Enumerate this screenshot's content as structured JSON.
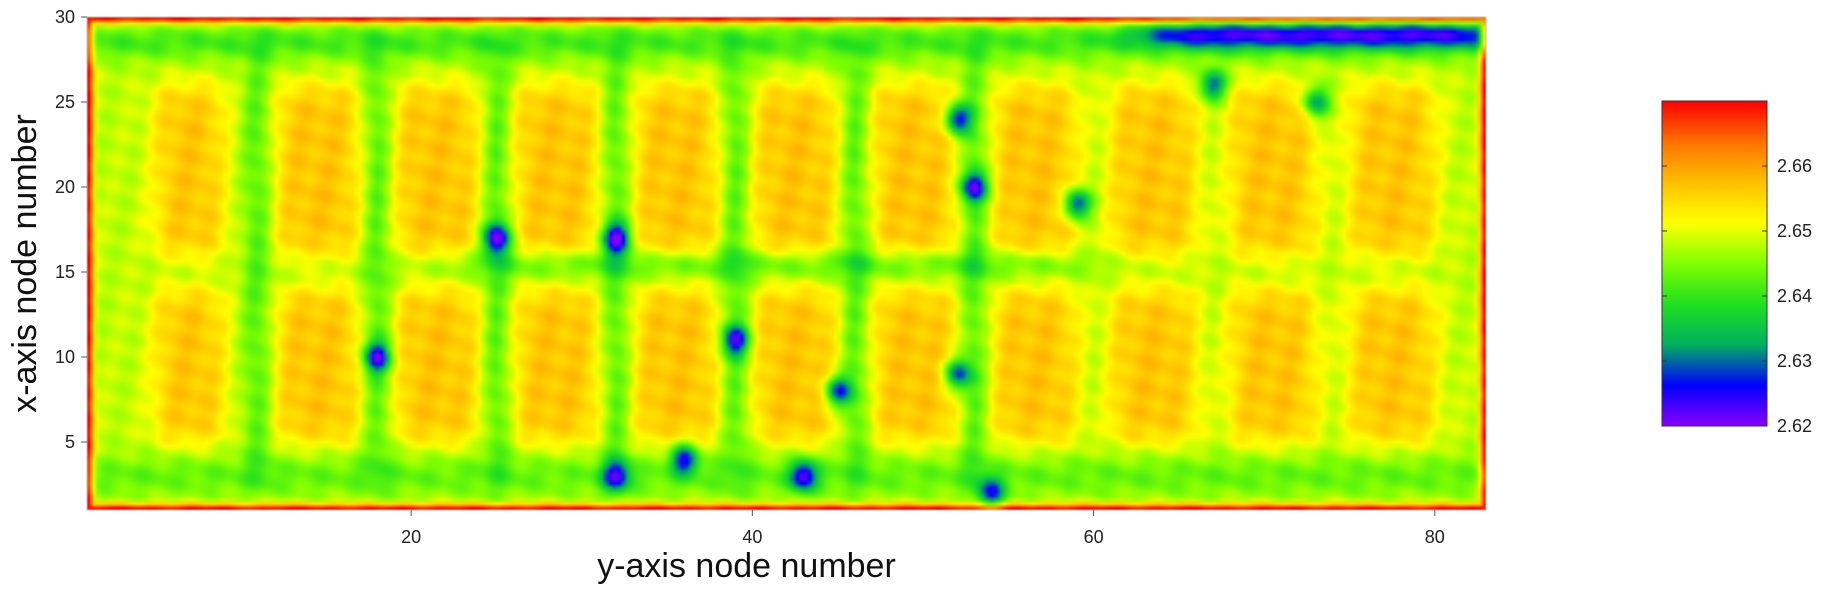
{
  "chart_data": {
    "type": "heatmap",
    "title": "",
    "xlabel": "y-axis node number",
    "ylabel": "x-axis node number",
    "x_range": [
      1,
      83
    ],
    "y_range": [
      1,
      30
    ],
    "x_ticks": [
      20,
      40,
      60,
      80
    ],
    "y_ticks": [
      5,
      10,
      15,
      20,
      25,
      30
    ],
    "grid": false,
    "colorbar": {
      "placement": "right",
      "range": [
        2.62,
        2.67
      ],
      "ticks": [
        2.62,
        2.63,
        2.64,
        2.65,
        2.66
      ],
      "colors": [
        "#8a00ff",
        "#0000ff",
        "#00b060",
        "#20e020",
        "#80ff00",
        "#ffff00",
        "#ffc000",
        "#ff7000",
        "#ff0000"
      ]
    },
    "field_description_values": {
      "border": 2.668,
      "background": 2.648,
      "block_interior": 2.657,
      "cross_band": 2.642,
      "hot_spot_min": 2.628,
      "top_right_strip": 2.63
    },
    "block_columns_x": [
      [
        5,
        9
      ],
      [
        12,
        17
      ],
      [
        19,
        24
      ],
      [
        26,
        31
      ],
      [
        33,
        38
      ],
      [
        40,
        45
      ],
      [
        47,
        52
      ],
      [
        54,
        59
      ],
      [
        61,
        66
      ],
      [
        68,
        73
      ],
      [
        75,
        80
      ]
    ],
    "block_rows_y": [
      [
        5,
        14
      ],
      [
        16,
        26
      ]
    ],
    "cold_spots": [
      {
        "x": 18,
        "y": 10,
        "value": 2.63
      },
      {
        "x": 25,
        "y": 17,
        "value": 2.628
      },
      {
        "x": 32,
        "y": 17,
        "value": 2.628
      },
      {
        "x": 39,
        "y": 11,
        "value": 2.63
      },
      {
        "x": 45,
        "y": 8,
        "value": 2.629
      },
      {
        "x": 52,
        "y": 9,
        "value": 2.63
      },
      {
        "x": 52,
        "y": 24,
        "value": 2.628
      },
      {
        "x": 53,
        "y": 20,
        "value": 2.629
      },
      {
        "x": 59,
        "y": 19,
        "value": 2.628
      },
      {
        "x": 36,
        "y": 4,
        "value": 2.63
      },
      {
        "x": 43,
        "y": 3,
        "value": 2.629
      },
      {
        "x": 32,
        "y": 3,
        "value": 2.632
      },
      {
        "x": 54,
        "y": 2,
        "value": 2.632
      },
      {
        "x": 67,
        "y": 26,
        "value": 2.632
      },
      {
        "x": 73,
        "y": 25,
        "value": 2.632
      }
    ]
  }
}
